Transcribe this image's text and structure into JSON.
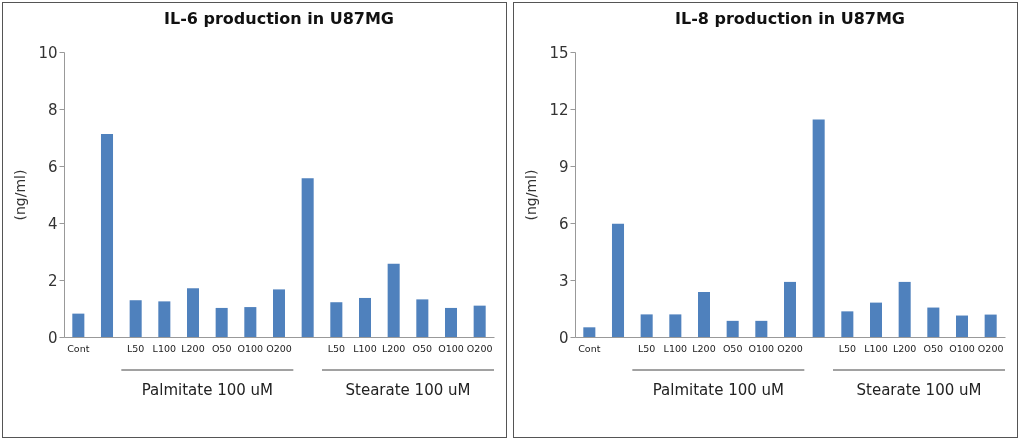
{
  "chart_data": [
    {
      "type": "bar",
      "title": "IL-6 production in U87MG",
      "ylabel": "(ng/ml)",
      "categories": [
        "Cont",
        null,
        "L50",
        "L100",
        "L200",
        "O50",
        "O100",
        "O200",
        null,
        "L50",
        "L100",
        "L200",
        "O50",
        "O100",
        "O200"
      ],
      "series": [
        {
          "color": "#4f81bd",
          "values": [
            0.82,
            7.12,
            1.29,
            1.25,
            1.71,
            1.02,
            1.05,
            1.67,
            5.57,
            1.22,
            1.37,
            2.57,
            1.32,
            1.02,
            1.1
          ]
        }
      ],
      "ylim": [
        0,
        10
      ],
      "yticks": [
        0,
        2,
        4,
        6,
        8,
        10
      ],
      "grid": false,
      "annotations": [
        "Palmitate 100 uM",
        "Stearate 100 uM"
      ]
    },
    {
      "type": "bar",
      "title": "IL-8 production in U87MG",
      "ylabel": "(ng/ml)",
      "categories": [
        "Cont",
        null,
        "L50",
        "L100",
        "L200",
        "O50",
        "O100",
        "O200",
        null,
        "L50",
        "L100",
        "L200",
        "O50",
        "O100",
        "O200"
      ],
      "series": [
        {
          "color": "#4f81bd",
          "values": [
            0.51,
            5.96,
            1.19,
            1.19,
            2.37,
            0.85,
            0.85,
            2.9,
            11.45,
            1.35,
            1.81,
            2.9,
            1.55,
            1.13,
            1.18
          ]
        }
      ],
      "ylim": [
        0,
        15
      ],
      "yticks": [
        0,
        3,
        6,
        9,
        12,
        15
      ],
      "grid": false,
      "annotations": [
        "Palmitate 100 uM",
        "Stearate 100 uM"
      ]
    }
  ]
}
